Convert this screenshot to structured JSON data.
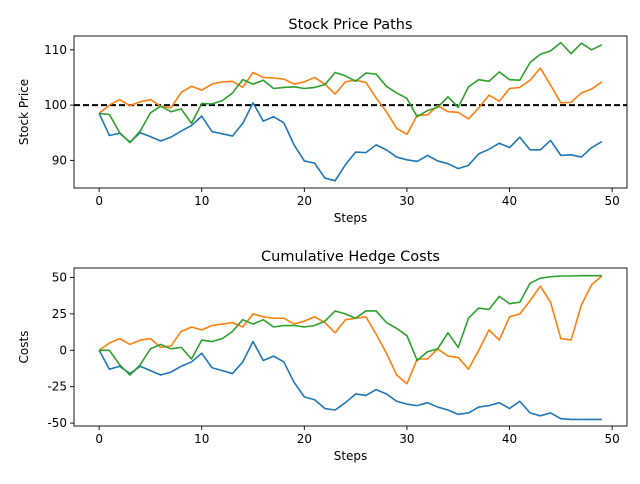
{
  "chart_data": [
    {
      "type": "line",
      "title": "Stock Price Paths",
      "xlabel": "Steps",
      "ylabel": "Stock Price",
      "xlim": [
        -2.45,
        51.45
      ],
      "ylim": [
        85,
        112.5
      ],
      "xticks": [
        0,
        10,
        20,
        30,
        40,
        50
      ],
      "yticks": [
        90,
        100,
        110
      ],
      "grid": false,
      "legend": "none",
      "reference_line": {
        "y": 100,
        "color": "#000000",
        "style": "dashed"
      },
      "x": [
        0,
        1,
        2,
        3,
        4,
        5,
        6,
        7,
        8,
        9,
        10,
        11,
        12,
        13,
        14,
        15,
        16,
        17,
        18,
        19,
        20,
        21,
        22,
        23,
        24,
        25,
        26,
        27,
        28,
        29,
        30,
        31,
        32,
        33,
        34,
        35,
        36,
        37,
        38,
        39,
        40,
        41,
        42,
        43,
        44,
        45,
        46,
        47,
        48,
        49
      ],
      "series": [
        {
          "color": "#1f77b4",
          "values": [
            98.5,
            94.5,
            94.9,
            93.3,
            95.0,
            94.3,
            93.5,
            94.2,
            95.3,
            96.3,
            98.0,
            95.2,
            94.8,
            94.4,
            96.7,
            100.4,
            97.1,
            97.9,
            96.8,
            92.8,
            89.9,
            89.5,
            86.8,
            86.3,
            89.2,
            91.5,
            91.4,
            92.8,
            91.9,
            90.6,
            90.1,
            89.8,
            90.9,
            89.9,
            89.4,
            88.5,
            89.1,
            91.2,
            92.0,
            93.1,
            92.3,
            94.2,
            91.9,
            91.9,
            93.6,
            90.9,
            91.0,
            90.6,
            92.3,
            93.4
          ]
        },
        {
          "color": "#ff7f0e",
          "values": [
            98.5,
            100.0,
            101.0,
            99.9,
            100.6,
            101.0,
            99.8,
            99.5,
            102.3,
            103.4,
            102.7,
            103.8,
            104.2,
            104.3,
            103.2,
            105.9,
            105.0,
            104.9,
            104.7,
            103.8,
            104.2,
            105.0,
            103.8,
            102.0,
            104.2,
            104.5,
            104.1,
            101.3,
            98.8,
            95.8,
            94.7,
            98.2,
            98.2,
            99.9,
            98.8,
            98.7,
            97.5,
            99.5,
            101.8,
            100.7,
            103.0,
            103.2,
            104.5,
            106.7,
            103.6,
            100.4,
            100.5,
            102.2,
            102.9,
            104.2
          ]
        },
        {
          "color": "#2ca02c",
          "values": [
            98.5,
            98.3,
            95.0,
            93.2,
            95.3,
            98.6,
            99.8,
            98.8,
            99.3,
            96.7,
            100.3,
            100.2,
            100.8,
            102.2,
            104.6,
            103.8,
            104.5,
            103.0,
            103.2,
            103.3,
            103.0,
            103.2,
            103.7,
            105.9,
            105.3,
            104.3,
            105.8,
            105.6,
            103.4,
            102.2,
            101.2,
            97.9,
            99.0,
            99.6,
            101.5,
            99.6,
            103.3,
            104.6,
            104.3,
            106.0,
            104.6,
            104.5,
            107.7,
            109.2,
            109.8,
            111.3,
            109.3,
            111.2,
            110.0,
            110.9
          ]
        }
      ]
    },
    {
      "type": "line",
      "title": "Cumulative Hedge Costs",
      "xlabel": "Steps",
      "ylabel": "Costs",
      "xlim": [
        -2.45,
        51.45
      ],
      "ylim": [
        -52,
        56.5
      ],
      "xticks": [
        0,
        10,
        20,
        30,
        40,
        50
      ],
      "yticks": [
        -50,
        -25,
        0,
        25,
        50
      ],
      "grid": false,
      "legend": "none",
      "x": [
        0,
        1,
        2,
        3,
        4,
        5,
        6,
        7,
        8,
        9,
        10,
        11,
        12,
        13,
        14,
        15,
        16,
        17,
        18,
        19,
        20,
        21,
        22,
        23,
        24,
        25,
        26,
        27,
        28,
        29,
        30,
        31,
        32,
        33,
        34,
        35,
        36,
        37,
        38,
        39,
        40,
        41,
        42,
        43,
        44,
        45,
        46,
        47,
        48,
        49
      ],
      "series": [
        {
          "color": "#1f77b4",
          "values": [
            0,
            -13,
            -11,
            -16,
            -11,
            -14,
            -17,
            -15,
            -11,
            -8,
            -2,
            -12,
            -14,
            -16,
            -8,
            6,
            -7,
            -4,
            -8,
            -22,
            -32,
            -34,
            -40,
            -41,
            -36,
            -30,
            -31,
            -27,
            -30,
            -35,
            -37,
            -38,
            -36,
            -39,
            -41,
            -44,
            -43,
            -39,
            -38,
            -36,
            -40,
            -35,
            -43,
            -45,
            -43,
            -47,
            -47.5,
            -47.5,
            -47.5,
            -47.5
          ]
        },
        {
          "color": "#ff7f0e",
          "values": [
            0,
            5,
            8,
            4,
            7,
            8,
            2,
            3,
            13,
            16,
            14,
            17,
            18,
            19,
            16,
            25,
            23,
            22,
            22,
            18,
            20,
            23,
            19,
            12,
            21,
            22,
            23,
            11,
            -2,
            -17,
            -23,
            -6,
            -6,
            1,
            -4,
            -5,
            -13,
            0,
            14,
            7,
            23,
            25,
            34,
            44,
            33,
            8,
            7,
            31,
            45,
            51
          ]
        },
        {
          "color": "#2ca02c",
          "values": [
            0,
            0,
            -10,
            -17,
            -10,
            1,
            4,
            1,
            2,
            -6,
            7,
            6,
            8,
            13,
            21,
            18,
            21,
            16,
            17,
            17,
            16,
            17,
            20,
            27,
            25,
            22,
            27,
            27,
            19,
            15,
            10,
            -7,
            -1,
            1,
            12,
            2,
            22,
            29,
            28,
            37,
            32,
            33,
            46,
            49.5,
            50.5,
            51,
            51,
            51.2,
            51.2,
            51.2
          ]
        }
      ]
    }
  ]
}
